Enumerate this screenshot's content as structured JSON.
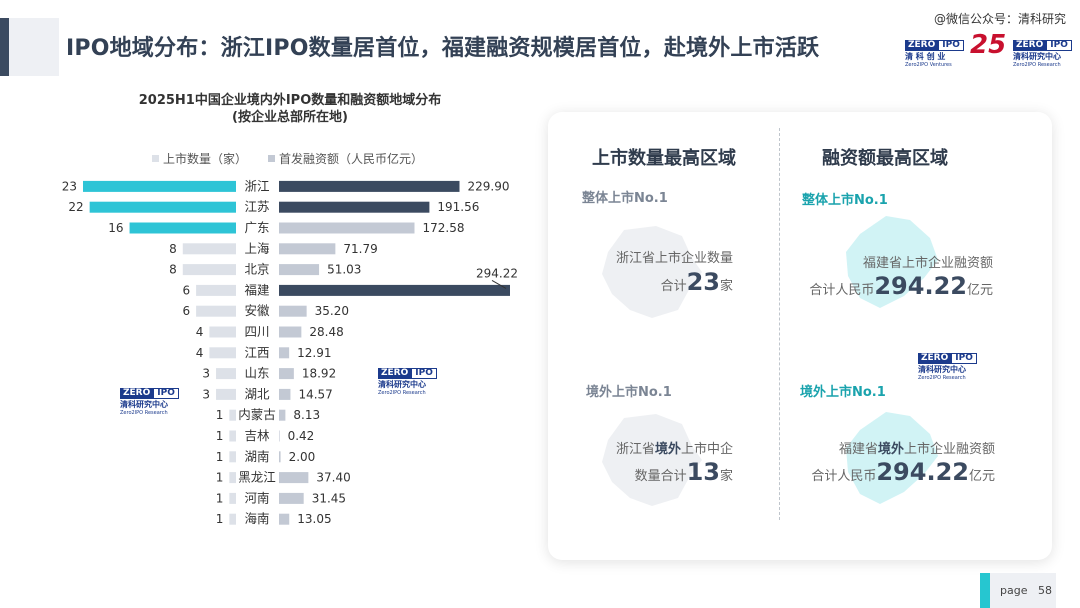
{
  "header": {
    "title": "IPO地域分布：浙江IPO数量居首位，福建融资规模居首位，赴境外上市活跃",
    "watermark": "@微信公众号：清科研究",
    "logos": {
      "zero": "ZERO",
      "ipo": "IPO",
      "ventures_cn": "清 科 创 业",
      "ventures_en": "Zero2IPO Ventures",
      "anniversary": "25",
      "research_cn": "清科研究中心",
      "research_en": "Zero2IPO Research"
    }
  },
  "chart_data": {
    "type": "bar",
    "title": "2025H1中国企业境内外IPO数量和融资额地域分布",
    "subtitle": "(按企业总部所在地)",
    "categories": [
      "浙江",
      "江苏",
      "广东",
      "上海",
      "北京",
      "福建",
      "安徽",
      "四川",
      "江西",
      "山东",
      "湖北",
      "内蒙古",
      "吉林",
      "湖南",
      "黑龙江",
      "河南",
      "海南"
    ],
    "series": [
      {
        "name": "上市数量（家）",
        "values": [
          23,
          22,
          16,
          8,
          8,
          6,
          6,
          4,
          4,
          3,
          3,
          1,
          1,
          1,
          1,
          1,
          1
        ]
      },
      {
        "name": "首发融资额（人民币亿元）",
        "values": [
          229.9,
          191.56,
          172.58,
          71.79,
          51.03,
          294.22,
          35.2,
          28.48,
          12.91,
          18.92,
          14.57,
          8.13,
          0.42,
          2.0,
          37.4,
          31.45,
          13.05
        ]
      }
    ],
    "count_labels": [
      "23",
      "22",
      "16",
      "8",
      "8",
      "6",
      "6",
      "4",
      "4",
      "3",
      "3",
      "1",
      "1",
      "1",
      "1",
      "1",
      "1"
    ],
    "amount_labels": [
      "229.90",
      "191.56",
      "172.58",
      "71.79",
      "51.03",
      "294.22",
      "35.20",
      "28.48",
      "12.91",
      "18.92",
      "14.57",
      "8.13",
      "0.42",
      "2.00",
      "37.40",
      "31.45",
      "13.05"
    ],
    "legend_placement": "top",
    "colors": {
      "count_highlight": "#2ec4d6",
      "count_normal": "#dde1e8",
      "amount_highlight": "#3b4a60",
      "amount_normal": "#c3c9d4"
    },
    "highlight_count_top": 3,
    "highlight_amount_top": 3
  },
  "panel": {
    "left_heading": "上市数量最高区域",
    "right_heading": "融资额最高区域",
    "left_top_sub": "整体上市No.1",
    "left_top_line1": "浙江省上市企业数量",
    "left_top_line2_pre": "合计",
    "left_top_num": "23",
    "left_top_line2_post": "家",
    "left_bottom_sub": "境外上市No.1",
    "left_bottom_line1_pre": "浙江省",
    "left_bottom_line1_em": "境外",
    "left_bottom_line1_post": "上市中企",
    "left_bottom_line2_pre": "数量合计",
    "left_bottom_num": "13",
    "left_bottom_line2_post": "家",
    "right_top_sub": "整体上市No.1",
    "right_top_line1": "福建省上市企业融资额",
    "right_top_line2_pre": "合计人民币",
    "right_top_num": "294.22",
    "right_top_line2_post": "亿元",
    "right_bottom_sub": "境外上市No.1",
    "right_bottom_line1_pre": "福建省",
    "right_bottom_line1_em": "境外",
    "right_bottom_line1_post": "上市企业融资额",
    "right_bottom_line2_pre": "合计人民币",
    "right_bottom_num": "294.22",
    "right_bottom_line2_post": "亿元",
    "colors": {
      "sub_gray": "#7b8594",
      "sub_teal": "#1aa3ad",
      "map_gray": "#eceef1",
      "map_teal": "#c9f1f4"
    }
  },
  "footer": {
    "page_prefix": "page",
    "page_number": "58"
  }
}
